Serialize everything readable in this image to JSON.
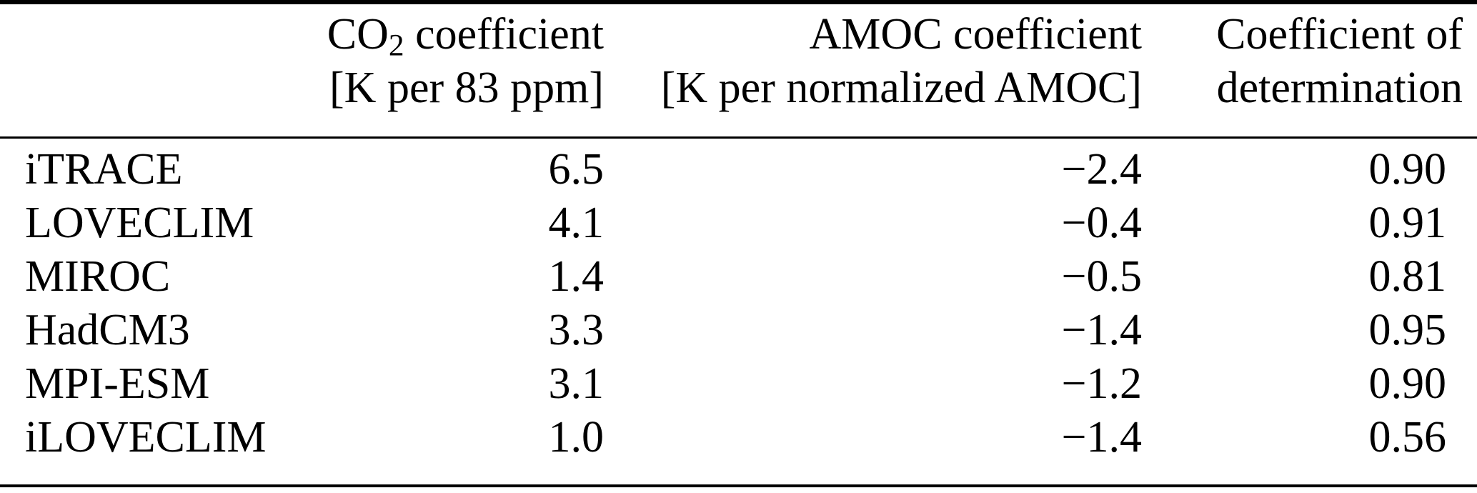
{
  "table": {
    "colors": {
      "text": "#000000",
      "background": "#ffffff",
      "rule": "#000000"
    },
    "header": {
      "model": "",
      "co2": {
        "line1_prefix": "CO",
        "line1_sub": "2",
        "line1_suffix": " coefficient",
        "line2": "[K per 83 ppm]"
      },
      "amoc": {
        "line1": "AMOC coefficient",
        "line2": "[K per normalized AMOC]"
      },
      "r2": {
        "line1": "Coefficient of",
        "line2": "determination"
      }
    },
    "rows": [
      {
        "model": "iTRACE",
        "co2": "6.5",
        "amoc": "−2.4",
        "r2": "0.90"
      },
      {
        "model": "LOVECLIM",
        "co2": "4.1",
        "amoc": "−0.4",
        "r2": "0.91"
      },
      {
        "model": "MIROC",
        "co2": "1.4",
        "amoc": "−0.5",
        "r2": "0.81"
      },
      {
        "model": "HadCM3",
        "co2": "3.3",
        "amoc": "−1.4",
        "r2": "0.95"
      },
      {
        "model": "MPI-ESM",
        "co2": "3.1",
        "amoc": "−1.2",
        "r2": "0.90"
      },
      {
        "model": "iLOVECLIM",
        "co2": "1.0",
        "amoc": "−1.4",
        "r2": "0.56"
      }
    ]
  }
}
